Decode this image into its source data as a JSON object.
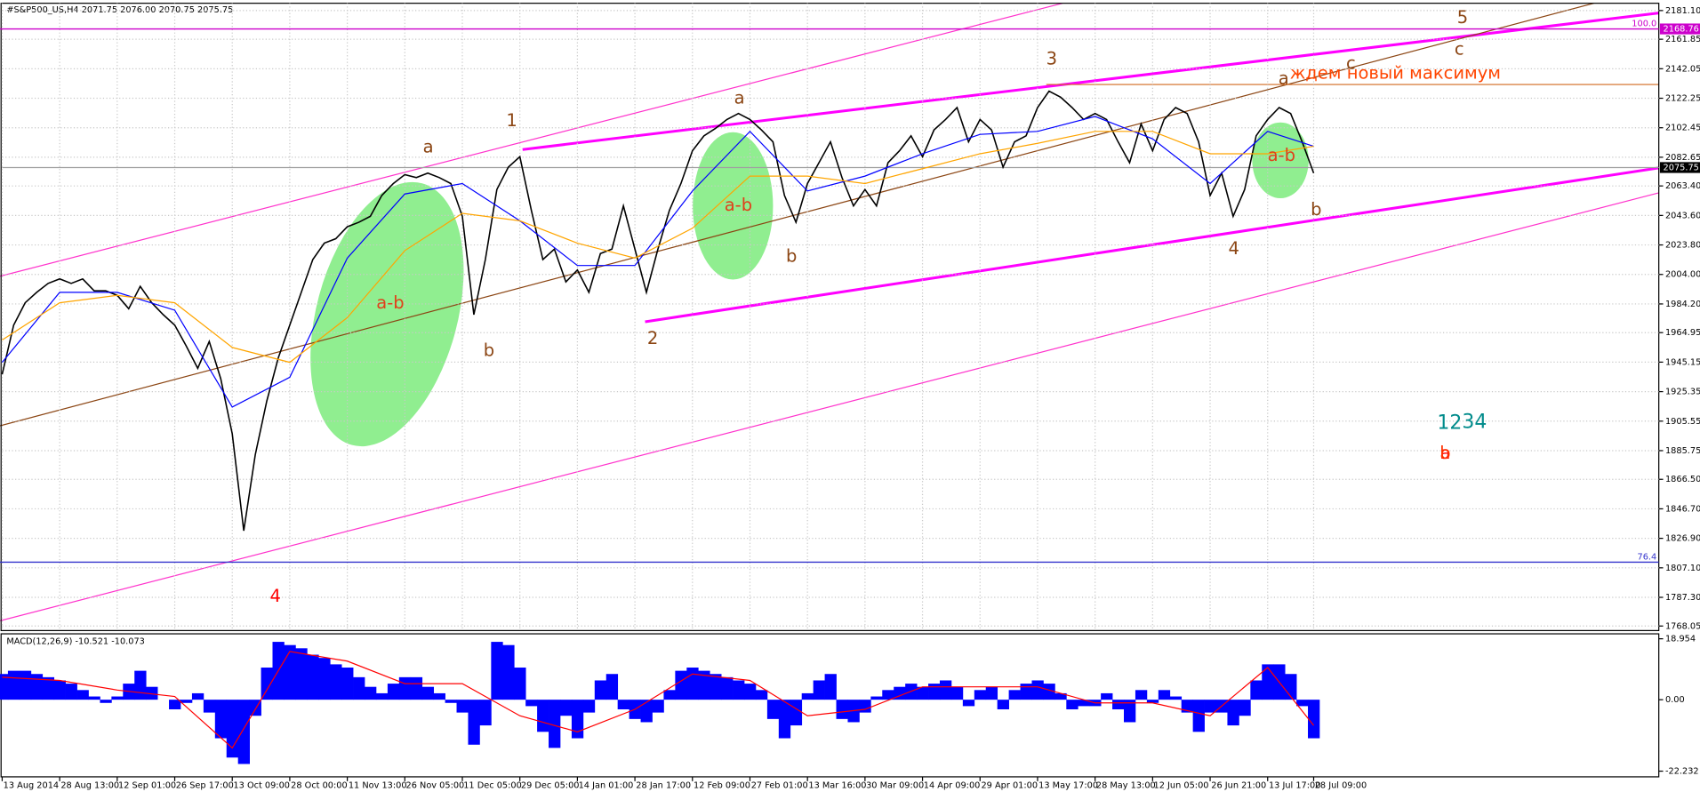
{
  "chart_data": [
    {
      "type": "line",
      "title": "#S&P500_US,H4 2071.75 2076.00 2070.75 2075.75",
      "xlim": [
        0,
        144
      ],
      "ylim": [
        1765,
        2186
      ],
      "yticks": [
        {
          "value": 2181.1,
          "label": "2181.10"
        },
        2161.85,
        2142.05,
        2122.25,
        2102.45,
        2082.65,
        {
          "value": 2063.4,
          "label": "2063.40"
        },
        {
          "value": 2043.6,
          "label": "2043.60"
        },
        {
          "value": 2023.8,
          "label": "2023.80"
        },
        {
          "value": 2004,
          "label": "2004.00"
        },
        {
          "value": 1984.2,
          "label": "1984.20"
        },
        1964.95,
        1945.15,
        1925.35,
        1905.55,
        1885.75,
        {
          "value": 1866.5,
          "label": "1866.50"
        },
        {
          "value": 1846.7,
          "label": "1846.70"
        },
        {
          "value": 1826.9,
          "label": "1826.90"
        },
        {
          "value": 1807.1,
          "label": "1807.10"
        },
        {
          "value": 1787.3,
          "label": "1787.30"
        },
        1768.05
      ],
      "grid": true,
      "current_price": 2075.75,
      "levels": [
        {
          "value": 2168.76,
          "label": "100.0",
          "color": "#cc00cc"
        },
        {
          "value": 1810.9,
          "label": "76.4",
          "color": "#3333cc"
        }
      ],
      "series": [
        {
          "color": "#000000",
          "values": [
            1937,
            1970,
            1985,
            1992,
            1998,
            2001,
            1998,
            2001,
            1993,
            1993,
            1990,
            1981,
            1996,
            1985,
            1977,
            1970,
            1956,
            1941,
            1959,
            1934,
            1897,
            1832,
            1883,
            1919,
            1948,
            1970,
            1992,
            2014,
            2025,
            2028,
            2036,
            2039,
            2043,
            2057,
            2065,
            2071,
            2069,
            2072,
            2069,
            2065,
            2043,
            1977,
            2014,
            2061,
            2076,
            2083,
            2047,
            2014,
            2021,
            1999,
            2007,
            1992,
            2018,
            2021,
            2050,
            2021,
            1992,
            2021,
            2047,
            2065,
            2087,
            2097,
            2102,
            2108,
            2112,
            2108,
            2101,
            2093,
            2057,
            2039,
            2065,
            2079,
            2093,
            2069,
            2050,
            2061,
            2050,
            2079,
            2087,
            2097,
            2083,
            2101,
            2108,
            2116,
            2093,
            2108,
            2101,
            2076,
            2093,
            2097,
            2116,
            2127,
            2123,
            2116,
            2108,
            2112,
            2108,
            2093,
            2079,
            2105,
            2087,
            2108,
            2116,
            2112,
            2093,
            2057,
            2072,
            2043,
            2061,
            2097,
            2108,
            2116,
            2112,
            2093,
            2072
          ]
        },
        {
          "color": "#0000ff",
          "x": [
            0,
            5,
            10,
            15,
            20,
            25,
            30,
            35,
            40,
            45,
            50,
            55,
            60,
            65,
            70,
            75,
            80,
            85,
            90,
            95,
            100,
            105,
            110,
            114
          ],
          "values": [
            1945,
            1992,
            1992,
            1980,
            1915,
            1935,
            2015,
            2058,
            2065,
            2040,
            2010,
            2010,
            2060,
            2100,
            2060,
            2070,
            2085,
            2098,
            2100,
            2110,
            2095,
            2065,
            2100,
            2090
          ]
        },
        {
          "color": "#ffa500",
          "x": [
            0,
            5,
            10,
            15,
            20,
            25,
            30,
            35,
            40,
            45,
            50,
            55,
            60,
            65,
            70,
            75,
            80,
            85,
            90,
            95,
            100,
            105,
            110,
            114
          ],
          "values": [
            1960,
            1985,
            1990,
            1985,
            1955,
            1945,
            1975,
            2020,
            2045,
            2040,
            2025,
            2015,
            2035,
            2070,
            2070,
            2065,
            2075,
            2085,
            2092,
            2100,
            2100,
            2085,
            2085,
            2090
          ]
        }
      ],
      "annotations": [
        {
          "text": "a",
          "color": "#8b4513"
        },
        {
          "text": "1",
          "color": "#8b4513"
        },
        {
          "text": "a",
          "color": "#8b4513"
        },
        {
          "text": "3",
          "color": "#8b4513"
        },
        {
          "text": "5",
          "color": "#8b4513"
        },
        {
          "text": "c",
          "color": "#8b4513"
        },
        {
          "text": "c",
          "color": "#8b4513"
        },
        {
          "text": "a",
          "color": "#8b4513"
        },
        {
          "text": "ждем новый максимум",
          "color": "#ff4500"
        },
        {
          "text": "a-b",
          "color": "#e0401a"
        },
        {
          "text": "b",
          "color": "#8b4513"
        },
        {
          "text": "2",
          "color": "#8b4513"
        },
        {
          "text": "a-b",
          "color": "#e0401a"
        },
        {
          "text": "b",
          "color": "#8b4513"
        },
        {
          "text": "a-b",
          "color": "#e0401a"
        },
        {
          "text": "4",
          "color": "#8b4513"
        },
        {
          "text": "b",
          "color": "#8b4513"
        },
        {
          "text": "4",
          "color": "#ff0000"
        },
        {
          "text": "12",
          "color": "#008b8b"
        },
        {
          "text": "34",
          "color": "#008b8b"
        },
        {
          "text": "a",
          "color": "#ff0000"
        },
        {
          "text": "b",
          "color": "#ff3300"
        }
      ]
    },
    {
      "type": "bar",
      "title": "MACD(12,26,9) -10.521 -10.073",
      "xlim": [
        0,
        144
      ],
      "ylim": [
        -24,
        20.5
      ],
      "yticks": [
        18.954,
        {
          "value": 0,
          "label": "0.00"
        },
        -22.232
      ],
      "xticks": [
        {
          "value": 0,
          "label": "13 Aug 2014"
        },
        {
          "value": 5,
          "label": "28 Aug 13:00"
        },
        {
          "value": 10,
          "label": "12 Sep 01:00"
        },
        {
          "value": 15,
          "label": "26 Sep 17:00"
        },
        {
          "value": 20,
          "label": "13 Oct 09:00"
        },
        {
          "value": 25,
          "label": "28 Oct 00:00"
        },
        {
          "value": 30,
          "label": "11 Nov 13:00"
        },
        {
          "value": 35,
          "label": "26 Nov 05:00"
        },
        {
          "value": 40,
          "label": "11 Dec 05:00"
        },
        {
          "value": 45,
          "label": "29 Dec 05:00"
        },
        {
          "value": 50,
          "label": "14 Jan 01:00"
        },
        {
          "value": 55,
          "label": "28 Jan 17:00"
        },
        {
          "value": 60,
          "label": "12 Feb 09:00"
        },
        {
          "value": 65,
          "label": "27 Feb 01:00"
        },
        {
          "value": 70,
          "label": "13 Mar 16:00"
        },
        {
          "value": 75,
          "label": "30 Mar 09:00"
        },
        {
          "value": 80,
          "label": "14 Apr 09:00"
        },
        {
          "value": 85,
          "label": "29 Apr 01:00"
        },
        {
          "value": 90,
          "label": "13 May 17:00"
        },
        {
          "value": 95,
          "label": "28 May 13:00"
        },
        {
          "value": 100,
          "label": "12 Jun 05:00"
        },
        {
          "value": 105,
          "label": "26 Jun 21:00"
        },
        {
          "value": 110,
          "label": "13 Jul 17:00"
        },
        {
          "value": 114,
          "label": "28 Jul 09:00"
        }
      ],
      "series": [
        {
          "color": "#0000ff",
          "values": [
            8,
            9,
            9,
            8,
            7,
            6,
            5,
            3,
            1,
            -1,
            1,
            5,
            9,
            4,
            0,
            -3,
            -1,
            2,
            -4,
            -12,
            -18,
            -20,
            -5,
            10,
            18,
            17,
            16,
            14,
            13,
            11,
            10,
            7,
            4,
            2,
            5,
            7,
            7,
            4,
            2,
            -1,
            -4,
            -14,
            -8,
            18,
            17,
            10,
            -2,
            -10,
            -15,
            -5,
            -12,
            -4,
            6,
            8,
            -3,
            -6,
            -7,
            -4,
            3,
            9,
            10,
            9,
            8,
            7,
            6,
            5,
            3,
            -6,
            -12,
            -8,
            2,
            6,
            8,
            -6,
            -7,
            -4,
            1,
            3,
            4,
            5,
            4,
            5,
            6,
            4,
            -2,
            3,
            4,
            -3,
            3,
            5,
            6,
            5,
            2,
            -3,
            -2,
            -2,
            2,
            -3,
            -7,
            3,
            -1,
            3,
            1,
            -4,
            -10,
            -4,
            -4,
            -8,
            -5,
            6,
            11,
            11,
            8,
            -2,
            -12
          ]
        },
        {
          "color": "#ff0000",
          "x": [
            0,
            5,
            10,
            15,
            20,
            25,
            30,
            35,
            40,
            45,
            50,
            55,
            60,
            65,
            70,
            75,
            80,
            85,
            90,
            95,
            100,
            105,
            110,
            114
          ],
          "values": [
            7,
            6,
            3,
            1,
            -15,
            15,
            12,
            5,
            5,
            -5,
            -10,
            -3,
            8,
            6,
            -5,
            -3,
            4,
            4,
            4,
            -1,
            -1,
            -5,
            10,
            -8
          ]
        }
      ]
    }
  ]
}
